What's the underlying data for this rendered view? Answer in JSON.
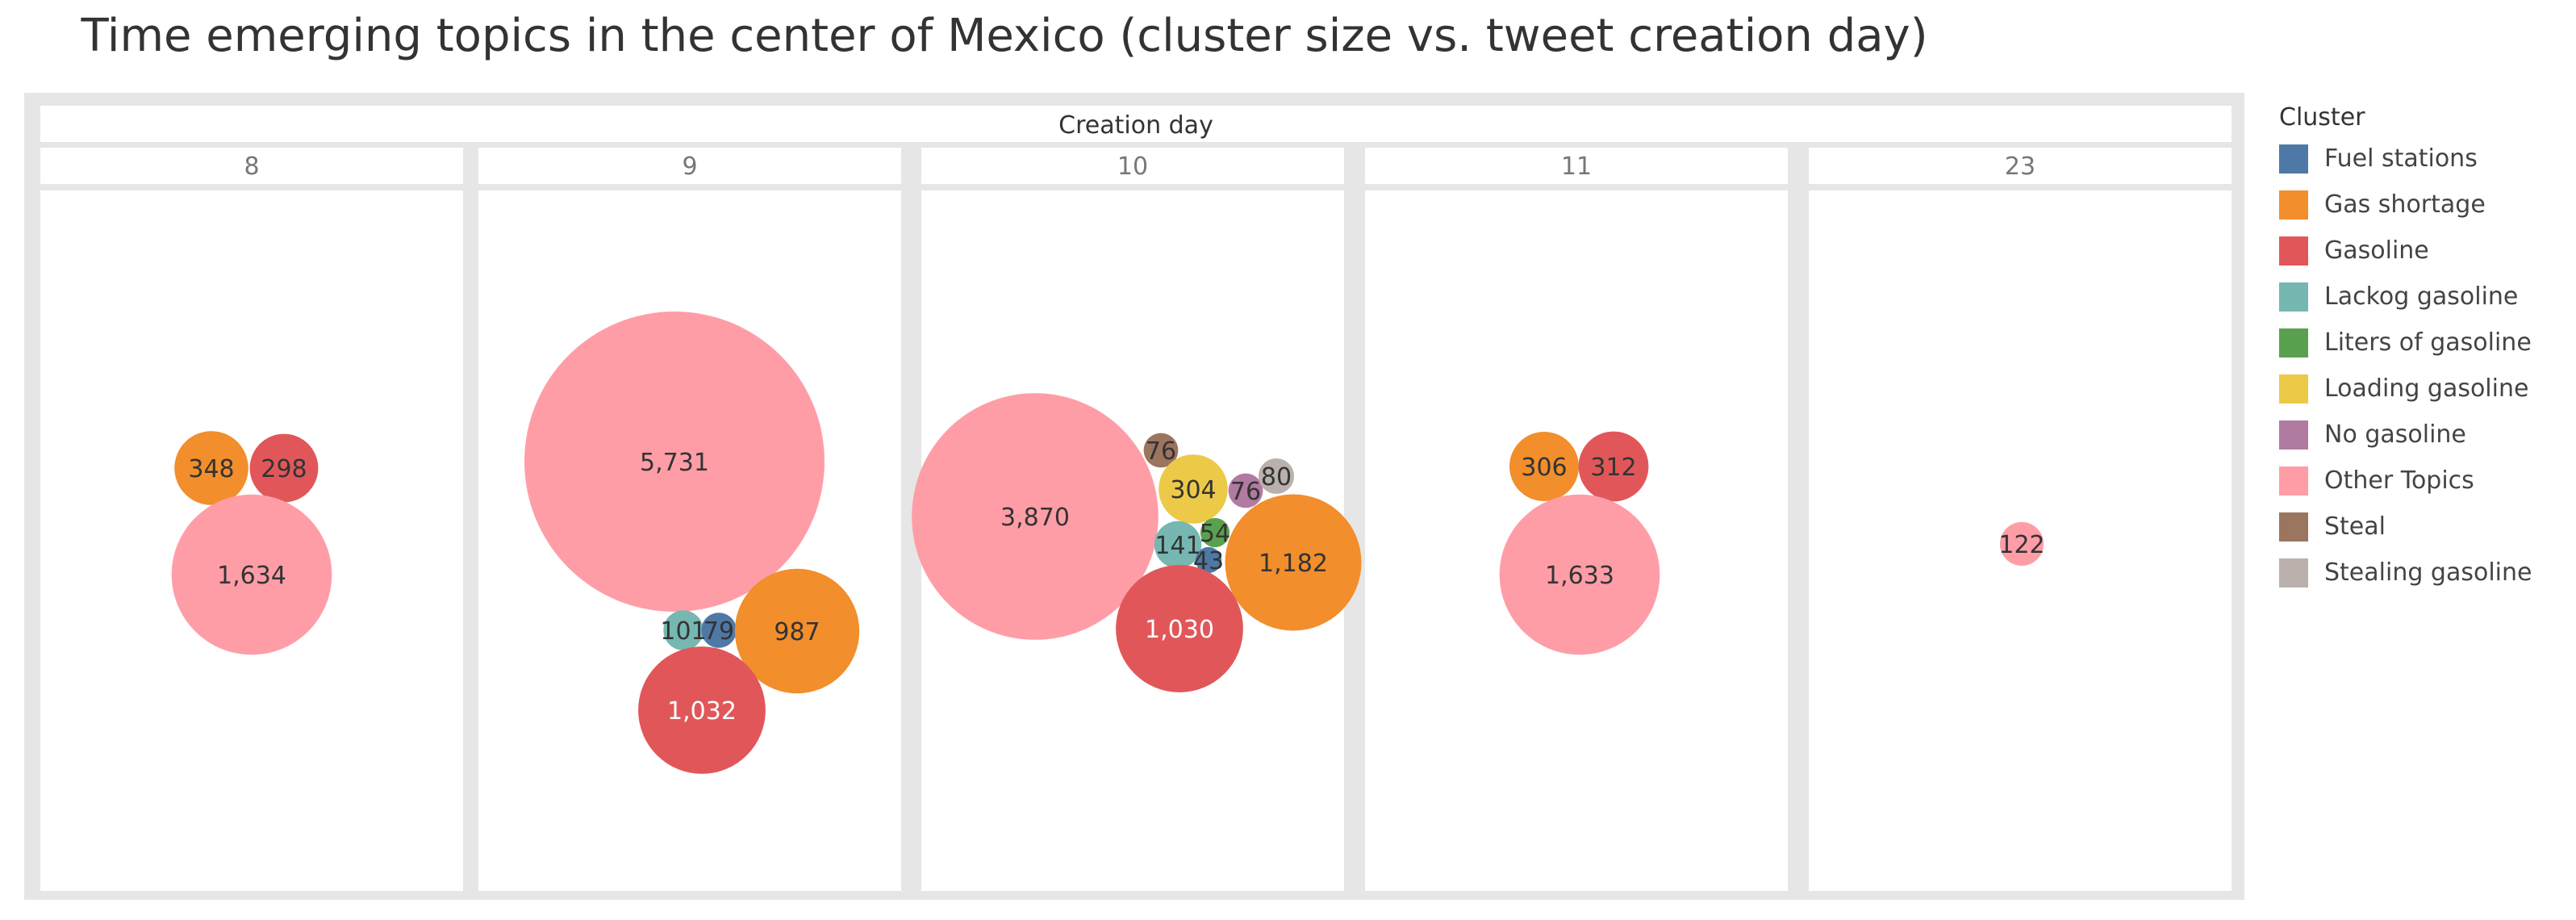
{
  "chart_data": {
    "type": "packed-bubble",
    "title": "Time emerging topics in the center of Mexico (cluster size vs. tweet creation day)",
    "column_header": "Creation day",
    "size_measure": "cluster size",
    "columns": [
      "8",
      "9",
      "10",
      "11",
      "23"
    ],
    "legend": {
      "title": "Cluster",
      "entries": [
        {
          "name": "Fuel stations",
          "color": "#4e79a7"
        },
        {
          "name": "Gas shortage",
          "color": "#f28e2b"
        },
        {
          "name": "Gasoline",
          "color": "#e15759"
        },
        {
          "name": "Lackog gasoline",
          "color": "#76b7b2"
        },
        {
          "name": "Liters of gasoline",
          "color": "#59a14f"
        },
        {
          "name": "Loading gasoline",
          "color": "#edc948"
        },
        {
          "name": "No gasoline",
          "color": "#b07aa1"
        },
        {
          "name": "Other Topics",
          "color": "#ff9da7"
        },
        {
          "name": "Steal",
          "color": "#9c755f"
        },
        {
          "name": "Stealing gasoline",
          "color": "#bab0ac"
        }
      ]
    },
    "bubbles": [
      {
        "day": "8",
        "cluster": "Gas shortage",
        "value": 348,
        "label": "348"
      },
      {
        "day": "8",
        "cluster": "Gasoline",
        "value": 298,
        "label": "298"
      },
      {
        "day": "8",
        "cluster": "Other Topics",
        "value": 1634,
        "label": "1,634"
      },
      {
        "day": "9",
        "cluster": "Other Topics",
        "value": 5731,
        "label": "5,731"
      },
      {
        "day": "9",
        "cluster": "Lackog gasoline",
        "value": 101,
        "label": "101"
      },
      {
        "day": "9",
        "cluster": "Fuel stations",
        "value": 79,
        "label": "79"
      },
      {
        "day": "9",
        "cluster": "Gas shortage",
        "value": 987,
        "label": "987"
      },
      {
        "day": "9",
        "cluster": "Gasoline",
        "value": 1032,
        "label": "1,032"
      },
      {
        "day": "10",
        "cluster": "Other Topics",
        "value": 3870,
        "label": "3,870"
      },
      {
        "day": "10",
        "cluster": "Steal",
        "value": 76,
        "label": "76"
      },
      {
        "day": "10",
        "cluster": "Loading gasoline",
        "value": 304,
        "label": "304"
      },
      {
        "day": "10",
        "cluster": "No gasoline",
        "value": 76,
        "label": "76"
      },
      {
        "day": "10",
        "cluster": "Stealing gasoline",
        "value": 80,
        "label": "80"
      },
      {
        "day": "10",
        "cluster": "Lackog gasoline",
        "value": 141,
        "label": "141"
      },
      {
        "day": "10",
        "cluster": "Liters of gasoline",
        "value": 54,
        "label": "54"
      },
      {
        "day": "10",
        "cluster": "Fuel stations",
        "value": 43,
        "label": "43"
      },
      {
        "day": "10",
        "cluster": "Gas shortage",
        "value": 1182,
        "label": "1,182"
      },
      {
        "day": "10",
        "cluster": "Gasoline",
        "value": 1030,
        "label": "1,030"
      },
      {
        "day": "11",
        "cluster": "Gas shortage",
        "value": 306,
        "label": "306"
      },
      {
        "day": "11",
        "cluster": "Gasoline",
        "value": 312,
        "label": "312"
      },
      {
        "day": "11",
        "cluster": "Other Topics",
        "value": 1633,
        "label": "1,633"
      },
      {
        "day": "23",
        "cluster": "Other Topics",
        "value": 122,
        "label": "122"
      }
    ]
  }
}
